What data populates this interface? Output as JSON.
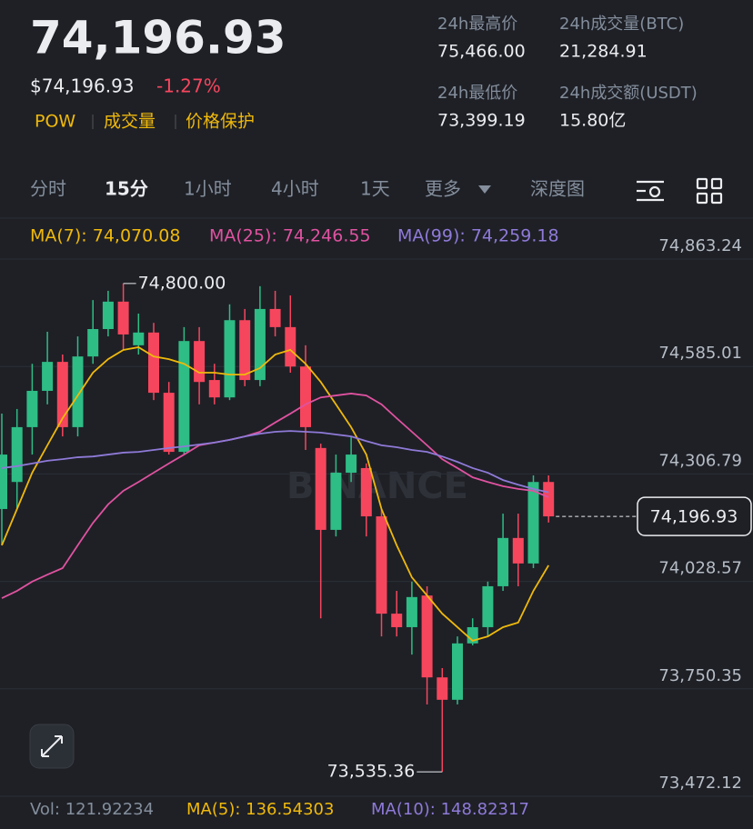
{
  "header": {
    "price": "74,196.93",
    "price_usd": "$74,196.93",
    "change": "-1.27%",
    "tags": [
      "POW",
      "成交量",
      "价格保护"
    ],
    "stats": [
      {
        "label": "24h最高价",
        "value": "75,466.00"
      },
      {
        "label": "24h成交量(BTC)",
        "value": "21,284.91"
      },
      {
        "label": "24h最低价",
        "value": "73,399.19"
      },
      {
        "label": "24h成交额(USDT)",
        "value": "15.80亿"
      }
    ]
  },
  "tabs": [
    "分时",
    "15分",
    "1小时",
    "4小时",
    "1天",
    "更多",
    "深度图"
  ],
  "chart_data": {
    "type": "candlestick",
    "watermark": "BINANCE",
    "up_color": "#2ebd85",
    "down_color": "#f6465d",
    "open": [
      74216,
      74286,
      74428,
      74522,
      74597,
      74428,
      74611,
      74682,
      74753,
      74640,
      74673,
      74517,
      74364,
      74651,
      74550,
      74505,
      74705,
      74550,
      74734,
      74687,
      74585,
      74374,
      74162,
      74310,
      74322,
      74197,
      73945,
      73910,
      73992,
      73780,
      73722,
      73868,
      73910,
      74016,
      74141,
      74075,
      74286
    ],
    "high": [
      74463,
      74475,
      74592,
      74675,
      74616,
      74663,
      74757,
      74781,
      74800.0,
      74722,
      74698,
      74545,
      74687,
      74687,
      74592,
      74746,
      74734,
      74793,
      74781,
      74769,
      74640,
      74385,
      74357,
      74404,
      74334,
      74216,
      74004,
      74028,
      74016,
      73804,
      73886,
      73933,
      74028,
      74204,
      74204,
      74303,
      74303
    ],
    "low": [
      74122,
      74216,
      74357,
      74487,
      74404,
      74404,
      74592,
      74663,
      74628,
      74616,
      74498,
      74357,
      74357,
      74487,
      74487,
      74498,
      74534,
      74534,
      74663,
      74569,
      74369,
      73933,
      74145,
      74286,
      74145,
      73886,
      73886,
      73839,
      73710,
      73535.36,
      73710,
      73863,
      73886,
      74004,
      74016,
      74063,
      74181
    ],
    "close": [
      74357,
      74428,
      74522,
      74597,
      74428,
      74611,
      74682,
      74753,
      74668,
      74673,
      74517,
      74364,
      74651,
      74545,
      74505,
      74705,
      74550,
      74734,
      74687,
      74585,
      74428,
      74162,
      74310,
      74357,
      74197,
      73945,
      73910,
      73988,
      73780,
      73722,
      73868,
      73910,
      74016,
      74141,
      74075,
      74286,
      74196.93
    ],
    "series": [
      {
        "name": "MA(7): 74,070.08",
        "color": "#f0b90b",
        "values": [
          74122,
          74216,
          74310,
          74381,
          74451,
          74510,
          74569,
          74604,
          74628,
          74635,
          74611,
          74604,
          74592,
          74569,
          74569,
          74564,
          74564,
          74581,
          74616,
          74628,
          74592,
          74545,
          74487,
          74428,
          74357,
          74216,
          74122,
          74039,
          73992,
          73945,
          73910,
          73875,
          73886,
          73910,
          73922,
          74004,
          74070.08
        ]
      },
      {
        "name": "MA(25): 74,246.55",
        "color": "#e052a0",
        "values": [
          73985,
          74004,
          74028,
          74046,
          74063,
          74122,
          74180,
          74228,
          74263,
          74286,
          74310,
          74334,
          74357,
          74381,
          74388,
          74395,
          74404,
          74416,
          74440,
          74463,
          74487,
          74505,
          74510,
          74515,
          74510,
          74487,
          74451,
          74416,
          74381,
          74345,
          74322,
          74298,
          74286,
          74275,
          74268,
          74263,
          74246.55
        ]
      },
      {
        "name": "MA(99): 74,259.18",
        "color": "#8f7ad8",
        "values": [
          74322,
          74327,
          74334,
          74341,
          74345,
          74350,
          74352,
          74357,
          74362,
          74364,
          74369,
          74374,
          74378,
          74383,
          74388,
          74395,
          74404,
          74411,
          74416,
          74418,
          74416,
          74414,
          74409,
          74404,
          74392,
          74381,
          74376,
          74369,
          74364,
          74352,
          74338,
          74322,
          74310,
          74291,
          74279,
          74268,
          74259.18
        ]
      }
    ],
    "ylim": [
      73472.12,
      74863.24
    ],
    "yticks": [
      {
        "value": 74863.24,
        "label": "74,863.24"
      },
      {
        "value": 74585.01,
        "label": "74,585.01"
      },
      {
        "value": 74306.79,
        "label": "74,306.79"
      },
      {
        "value": 74028.57,
        "label": "74,028.57"
      },
      {
        "value": 73750.35,
        "label": "73,750.35"
      },
      {
        "value": 73472.12,
        "label": "73,472.12"
      }
    ],
    "grid": true,
    "high_label": {
      "value": 74800.0,
      "label": "74,800.00"
    },
    "low_label": {
      "value": 73535.36,
      "label": "73,535.36"
    },
    "last_price": {
      "value": 74196.93,
      "label": "74,196.93"
    }
  },
  "footer": {
    "vol": "Vol: 121.92234",
    "ma5": "MA(5): 136.54303",
    "ma10": "MA(10): 148.82317"
  }
}
